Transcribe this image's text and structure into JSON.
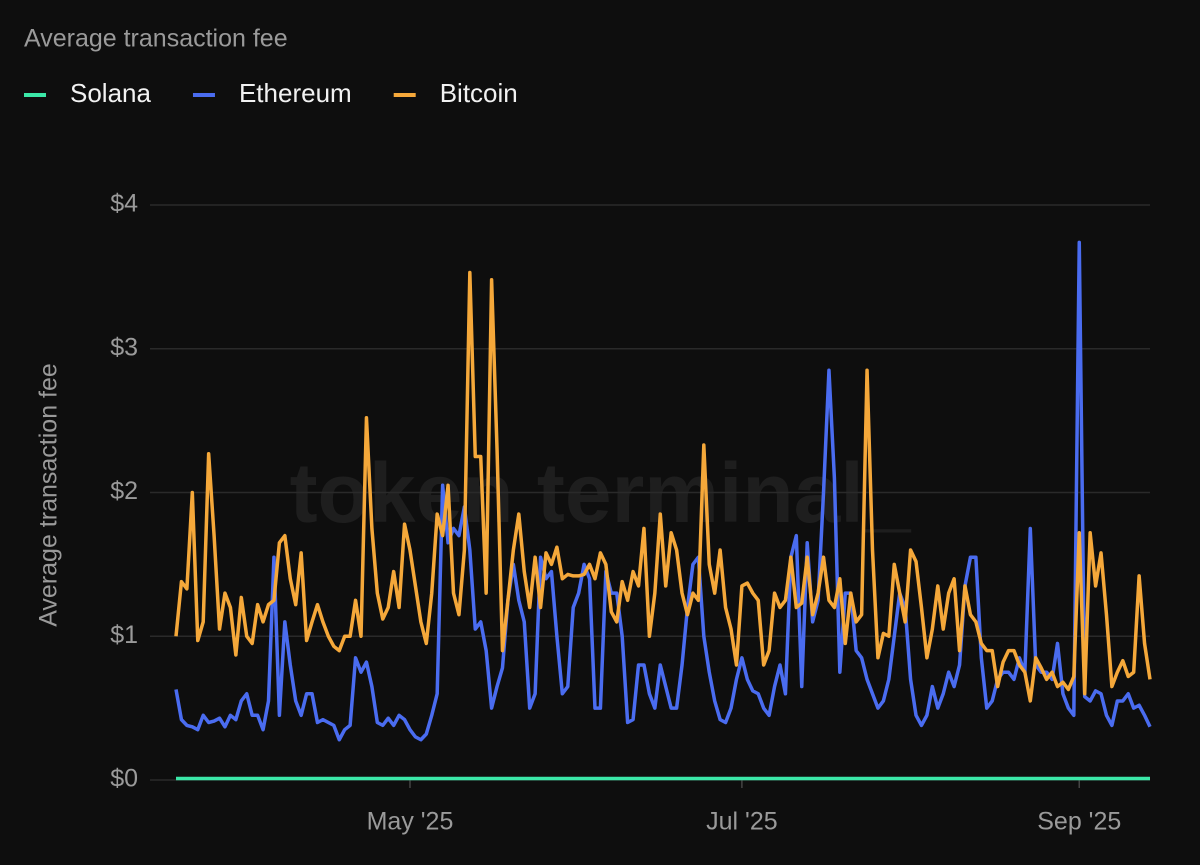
{
  "chart_data": {
    "type": "line",
    "title": "Average transaction fee",
    "y_label": "Average transaction fee",
    "watermark": "token terminal_",
    "x": [
      78,
      79,
      80,
      81,
      82,
      83,
      84,
      85,
      86,
      87,
      88,
      89,
      90,
      91,
      92,
      93,
      94,
      95,
      96,
      97,
      98,
      99,
      100,
      101,
      102,
      103,
      104,
      105,
      106,
      107,
      108,
      109,
      110,
      111,
      112,
      113,
      114,
      115,
      116,
      117,
      118,
      119,
      120,
      121,
      122,
      123,
      124,
      125,
      126,
      127,
      128,
      129,
      130,
      131,
      132,
      133,
      134,
      135,
      136,
      137,
      138,
      139,
      140,
      141,
      142,
      143,
      144,
      145,
      146,
      147,
      148,
      149,
      150,
      151,
      152,
      153,
      154,
      155,
      156,
      157,
      158,
      159,
      160,
      161,
      162,
      163,
      164,
      165,
      166,
      167,
      168,
      169,
      170,
      171,
      172,
      173,
      174,
      175,
      176,
      177,
      178,
      179,
      180,
      181,
      182,
      183,
      184,
      185,
      186,
      187,
      188,
      189,
      190,
      191,
      192,
      193,
      194,
      195,
      196,
      197,
      198,
      199,
      200,
      201,
      202,
      203,
      204,
      205,
      206,
      207,
      208,
      209,
      210,
      211,
      212,
      213,
      214,
      215,
      216,
      217,
      218,
      219,
      220,
      221,
      222,
      223,
      224,
      225,
      226,
      227,
      228,
      229,
      230,
      231,
      232,
      233,
      234,
      235,
      236,
      237,
      238,
      239,
      240,
      241,
      242,
      243,
      244,
      245,
      246,
      247,
      248,
      249,
      250,
      251,
      252,
      253,
      254,
      255,
      256,
      257
    ],
    "xlim": [
      78,
      257
    ],
    "xticks": [
      {
        "value": 121,
        "label": "May '25"
      },
      {
        "value": 182,
        "label": "Jul '25"
      },
      {
        "value": 244,
        "label": "Sep '25"
      }
    ],
    "ylim": [
      0,
      4
    ],
    "yticks": [
      {
        "value": 0,
        "label": "$0"
      },
      {
        "value": 1,
        "label": "$1"
      },
      {
        "value": 2,
        "label": "$2"
      },
      {
        "value": 3,
        "label": "$3"
      },
      {
        "value": 4,
        "label": "$4"
      }
    ],
    "grid": true,
    "series": [
      {
        "name": "Solana",
        "color": "#3be8a8",
        "values": [
          0.01,
          0.01,
          0.01,
          0.01,
          0.01,
          0.01,
          0.01,
          0.01,
          0.01,
          0.01,
          0.01,
          0.01,
          0.01,
          0.01,
          0.01,
          0.01,
          0.01,
          0.01,
          0.01,
          0.01,
          0.01,
          0.01,
          0.01,
          0.01,
          0.01,
          0.01,
          0.01,
          0.01,
          0.01,
          0.01,
          0.01,
          0.01,
          0.01,
          0.01,
          0.01,
          0.01,
          0.01,
          0.01,
          0.01,
          0.01,
          0.01,
          0.01,
          0.01,
          0.01,
          0.01,
          0.01,
          0.01,
          0.01,
          0.01,
          0.01,
          0.01,
          0.01,
          0.01,
          0.01,
          0.01,
          0.01,
          0.01,
          0.01,
          0.01,
          0.01,
          0.01,
          0.01,
          0.01,
          0.01,
          0.01,
          0.01,
          0.01,
          0.01,
          0.01,
          0.01,
          0.01,
          0.01,
          0.01,
          0.01,
          0.01,
          0.01,
          0.01,
          0.01,
          0.01,
          0.01,
          0.01,
          0.01,
          0.01,
          0.01,
          0.01,
          0.01,
          0.01,
          0.01,
          0.01,
          0.01,
          0.01,
          0.01,
          0.01,
          0.01,
          0.01,
          0.01,
          0.01,
          0.01,
          0.01,
          0.01,
          0.01,
          0.01,
          0.01,
          0.01,
          0.01,
          0.01,
          0.01,
          0.01,
          0.01,
          0.01,
          0.01,
          0.01,
          0.01,
          0.01,
          0.01,
          0.01,
          0.01,
          0.01,
          0.01,
          0.01,
          0.01,
          0.01,
          0.01,
          0.01,
          0.01,
          0.01,
          0.01,
          0.01,
          0.01,
          0.01,
          0.01,
          0.01,
          0.01,
          0.01,
          0.01,
          0.01,
          0.01,
          0.01,
          0.01,
          0.01,
          0.01,
          0.01,
          0.01,
          0.01,
          0.01,
          0.01,
          0.01,
          0.01,
          0.01,
          0.01,
          0.01,
          0.01,
          0.01,
          0.01,
          0.01,
          0.01,
          0.01,
          0.01,
          0.01,
          0.01,
          0.01,
          0.01,
          0.01,
          0.01,
          0.01,
          0.01,
          0.01,
          0.01,
          0.01,
          0.01,
          0.01,
          0.01,
          0.01,
          0.01,
          0.01,
          0.01,
          0.01,
          0.01,
          0.01,
          0.01
        ]
      },
      {
        "name": "Ethereum",
        "color": "#4a6cf0",
        "values": [
          0.63,
          0.42,
          0.38,
          0.37,
          0.35,
          0.45,
          0.4,
          0.41,
          0.43,
          0.37,
          0.45,
          0.42,
          0.55,
          0.6,
          0.45,
          0.45,
          0.35,
          0.55,
          1.55,
          0.45,
          1.1,
          0.8,
          0.55,
          0.45,
          0.6,
          0.6,
          0.4,
          0.42,
          0.4,
          0.38,
          0.28,
          0.35,
          0.38,
          0.85,
          0.75,
          0.82,
          0.65,
          0.4,
          0.38,
          0.43,
          0.38,
          0.45,
          0.42,
          0.35,
          0.3,
          0.28,
          0.32,
          0.45,
          0.6,
          2.05,
          1.65,
          1.75,
          1.7,
          1.9,
          1.6,
          1.05,
          1.1,
          0.9,
          0.5,
          0.65,
          0.78,
          1.25,
          1.5,
          1.25,
          1.1,
          0.5,
          0.6,
          1.55,
          1.4,
          1.45,
          1.0,
          0.6,
          0.65,
          1.2,
          1.3,
          1.5,
          1.4,
          0.5,
          0.5,
          1.45,
          1.3,
          1.3,
          1.0,
          0.4,
          0.42,
          0.8,
          0.8,
          0.6,
          0.5,
          0.8,
          0.65,
          0.5,
          0.5,
          0.8,
          1.2,
          1.5,
          1.55,
          1.0,
          0.75,
          0.55,
          0.42,
          0.4,
          0.5,
          0.7,
          0.85,
          0.7,
          0.62,
          0.6,
          0.5,
          0.45,
          0.65,
          0.8,
          0.6,
          1.55,
          1.7,
          0.65,
          1.65,
          1.1,
          1.25,
          2.0,
          2.85,
          2.1,
          0.75,
          1.3,
          1.3,
          0.9,
          0.85,
          0.7,
          0.6,
          0.5,
          0.55,
          0.7,
          1.0,
          1.3,
          1.2,
          0.7,
          0.45,
          0.38,
          0.45,
          0.65,
          0.5,
          0.6,
          0.75,
          0.65,
          0.8,
          1.35,
          1.55,
          1.55,
          0.85,
          0.5,
          0.55,
          0.7,
          0.75,
          0.75,
          0.7,
          0.85,
          0.75,
          1.75,
          0.8,
          0.75,
          0.75,
          0.7,
          0.95,
          0.6,
          0.5,
          0.45,
          3.74,
          0.58,
          0.55,
          0.62,
          0.6,
          0.45,
          0.38,
          0.55,
          0.55,
          0.6,
          0.5,
          0.52,
          0.45,
          0.37
        ]
      },
      {
        "name": "Bitcoin",
        "color": "#f5a83a",
        "values": [
          1.0,
          1.38,
          1.33,
          2.0,
          0.97,
          1.1,
          2.27,
          1.7,
          1.05,
          1.3,
          1.2,
          0.87,
          1.27,
          1.0,
          0.95,
          1.22,
          1.1,
          1.22,
          1.25,
          1.65,
          1.7,
          1.4,
          1.22,
          1.58,
          0.97,
          1.1,
          1.22,
          1.1,
          1.0,
          0.93,
          0.9,
          1.0,
          1.0,
          1.25,
          1.0,
          2.52,
          1.75,
          1.3,
          1.12,
          1.2,
          1.45,
          1.2,
          1.78,
          1.6,
          1.35,
          1.1,
          0.95,
          1.3,
          1.85,
          1.7,
          2.05,
          1.3,
          1.15,
          1.6,
          3.53,
          2.25,
          2.25,
          1.3,
          3.48,
          2.3,
          0.9,
          1.25,
          1.6,
          1.85,
          1.45,
          1.2,
          1.55,
          1.2,
          1.58,
          1.5,
          1.62,
          1.4,
          1.43,
          1.42,
          1.42,
          1.43,
          1.5,
          1.4,
          1.58,
          1.5,
          1.17,
          1.1,
          1.38,
          1.25,
          1.45,
          1.35,
          1.75,
          1.0,
          1.3,
          1.85,
          1.35,
          1.72,
          1.6,
          1.3,
          1.15,
          1.3,
          1.25,
          2.33,
          1.5,
          1.3,
          1.6,
          1.2,
          1.05,
          0.8,
          1.35,
          1.37,
          1.3,
          1.25,
          0.8,
          0.9,
          1.3,
          1.2,
          1.25,
          1.55,
          1.2,
          1.23,
          1.55,
          1.15,
          1.3,
          1.55,
          1.25,
          1.2,
          1.4,
          0.95,
          1.3,
          1.1,
          1.15,
          2.85,
          1.6,
          0.85,
          1.02,
          1.0,
          1.5,
          1.3,
          1.1,
          1.6,
          1.52,
          1.2,
          0.85,
          1.05,
          1.35,
          1.05,
          1.3,
          1.4,
          0.9,
          1.35,
          1.15,
          1.1,
          0.95,
          0.9,
          0.9,
          0.65,
          0.82,
          0.9,
          0.9,
          0.8,
          0.75,
          0.55,
          0.85,
          0.78,
          0.7,
          0.75,
          0.65,
          0.68,
          0.63,
          0.72,
          1.72,
          0.6,
          1.72,
          1.35,
          1.58,
          1.15,
          0.65,
          0.75,
          0.83,
          0.72,
          0.75,
          1.42,
          0.95,
          0.7
        ]
      }
    ]
  }
}
